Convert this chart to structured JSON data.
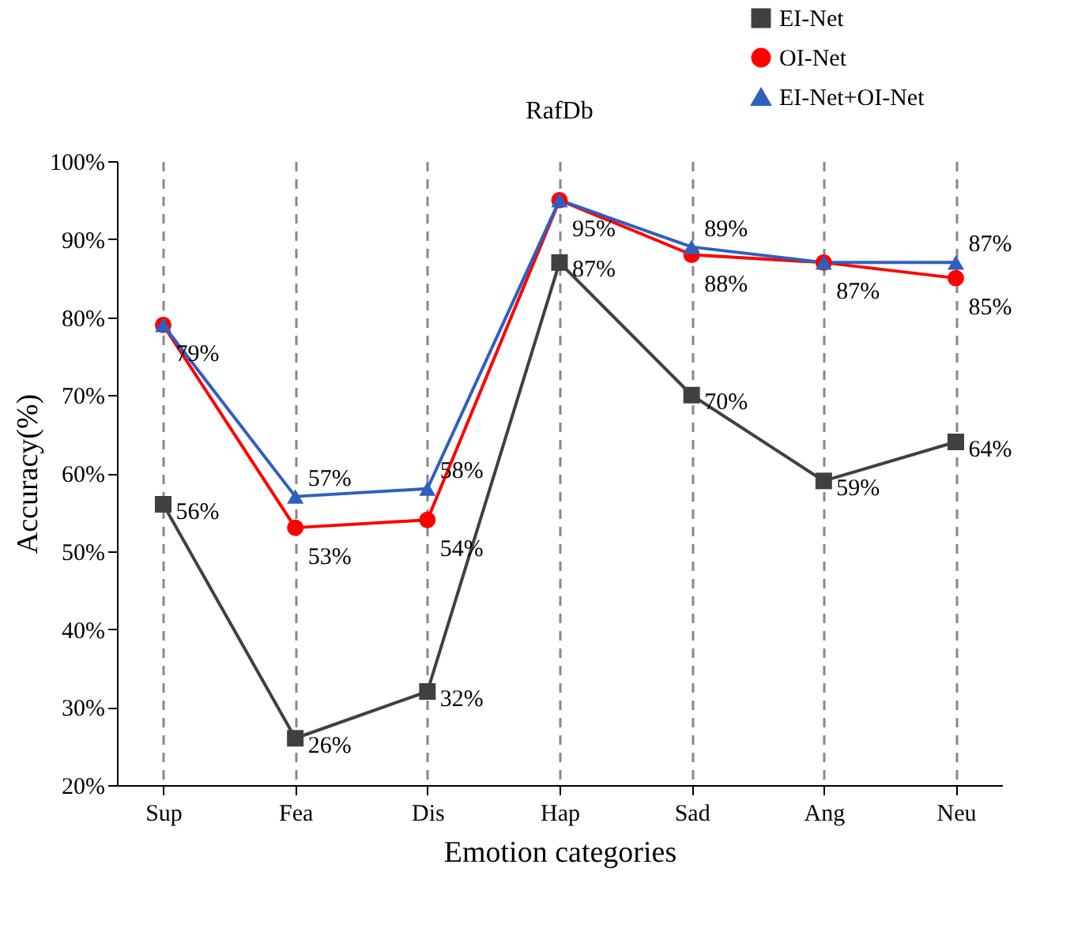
{
  "chart_data": {
    "type": "line",
    "title": "RafDb",
    "xlabel": "Emotion categories",
    "ylabel": "Accuracy(%)",
    "categories": [
      "Sup",
      "Fea",
      "Dis",
      "Hap",
      "Sad",
      "Ang",
      "Neu"
    ],
    "series": [
      {
        "name": "EI-Net",
        "color": "#404040",
        "marker": "square",
        "values": [
          56,
          26,
          32,
          87,
          70,
          59,
          64
        ],
        "value_labels": [
          "56%",
          "26%",
          "32%",
          "87%",
          "70%",
          "59%",
          "64%"
        ]
      },
      {
        "name": "OI-Net",
        "color": "#ff0000",
        "marker": "circle",
        "values": [
          79,
          53,
          54,
          95,
          88,
          87,
          85
        ],
        "value_labels": [
          "79%",
          "53%",
          "54%",
          "95%",
          "88%",
          "87%",
          "85%"
        ]
      },
      {
        "name": "EI-Net+OI-Net",
        "color": "#2f5fbf",
        "marker": "triangle",
        "values": [
          79,
          57,
          58,
          95,
          89,
          87,
          87
        ],
        "value_labels": [
          null,
          "57%",
          "58%",
          null,
          "89%",
          null,
          "87%"
        ]
      }
    ],
    "ylim": [
      20,
      100
    ],
    "yticks": [
      {
        "value": 20,
        "label": "20%"
      },
      {
        "value": 30,
        "label": "30%"
      },
      {
        "value": 40,
        "label": "40%"
      },
      {
        "value": 50,
        "label": "50%"
      },
      {
        "value": 60,
        "label": "60%"
      },
      {
        "value": 70,
        "label": "70%"
      },
      {
        "value": 80,
        "label": "80%"
      },
      {
        "value": 90,
        "label": "90%"
      },
      {
        "value": 100,
        "label": "100%"
      }
    ],
    "grid": "x",
    "line_style": "solid",
    "legend": "top right"
  }
}
